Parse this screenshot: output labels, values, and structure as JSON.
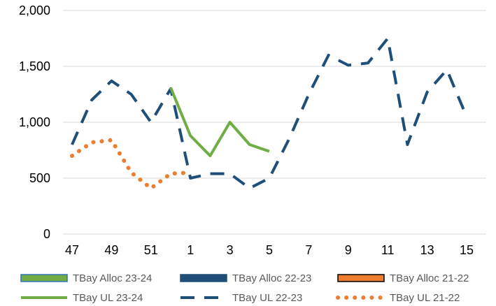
{
  "chart_data": {
    "type": "line",
    "categories": [
      "47",
      "48",
      "49",
      "50",
      "51",
      "52",
      "1",
      "2",
      "3",
      "4",
      "5",
      "6",
      "7",
      "8",
      "9",
      "10",
      "11",
      "12",
      "13",
      "14",
      "15"
    ],
    "x_tick_labels": [
      "47",
      "49",
      "51",
      "1",
      "3",
      "5",
      "7",
      "9",
      "11",
      "13",
      "15"
    ],
    "ylim": [
      0,
      2000
    ],
    "y_ticks": [
      0,
      500,
      1000,
      1500,
      2000
    ],
    "y_tick_labels": [
      "0",
      "500",
      "1,000",
      "1,500",
      "2,000"
    ],
    "grid": "horizontal",
    "legend_position": "bottom",
    "legend": [
      {
        "label": "TBay Alloc 23-24",
        "style": "box",
        "fill": "#70AD47",
        "stroke": "#2E75B6"
      },
      {
        "label": "TBay Alloc 22-23",
        "style": "box",
        "fill": "#1F4E79",
        "stroke": "#1F4E79"
      },
      {
        "label": "TBay Alloc 21-22",
        "style": "box",
        "fill": "#ED7D31",
        "stroke": "#000000"
      },
      {
        "label": "TBay UL 23-24",
        "style": "solid",
        "color": "#70AD47"
      },
      {
        "label": "TBay UL 22-23",
        "style": "dash",
        "color": "#1F4E79"
      },
      {
        "label": "TBay UL 21-22",
        "style": "dot",
        "color": "#ED7D31"
      }
    ],
    "series": [
      {
        "name": "TBay UL 22-23",
        "color": "#1F4E79",
        "style": "dash",
        "x": [
          "47",
          "48",
          "49",
          "50",
          "51",
          "52",
          "1",
          "2",
          "3",
          "4",
          "5",
          "6",
          "7",
          "8",
          "9",
          "10",
          "11",
          "12",
          "13",
          "14",
          "15"
        ],
        "values": [
          800,
          1200,
          1370,
          1250,
          1000,
          1300,
          500,
          540,
          540,
          410,
          500,
          850,
          1250,
          1600,
          1510,
          1530,
          1750,
          800,
          1270,
          1470,
          1050
        ]
      },
      {
        "name": "TBay UL 23-24",
        "color": "#70AD47",
        "style": "solid",
        "x": [
          "52",
          "1",
          "2",
          "3",
          "4",
          "5"
        ],
        "values": [
          1310,
          880,
          700,
          1000,
          800,
          740
        ]
      },
      {
        "name": "TBay UL 21-22",
        "color": "#ED7D31",
        "style": "dot",
        "x": [
          "47",
          "48",
          "49",
          "50",
          "51",
          "52",
          "1"
        ],
        "values": [
          700,
          820,
          840,
          550,
          410,
          540,
          550
        ]
      }
    ]
  }
}
